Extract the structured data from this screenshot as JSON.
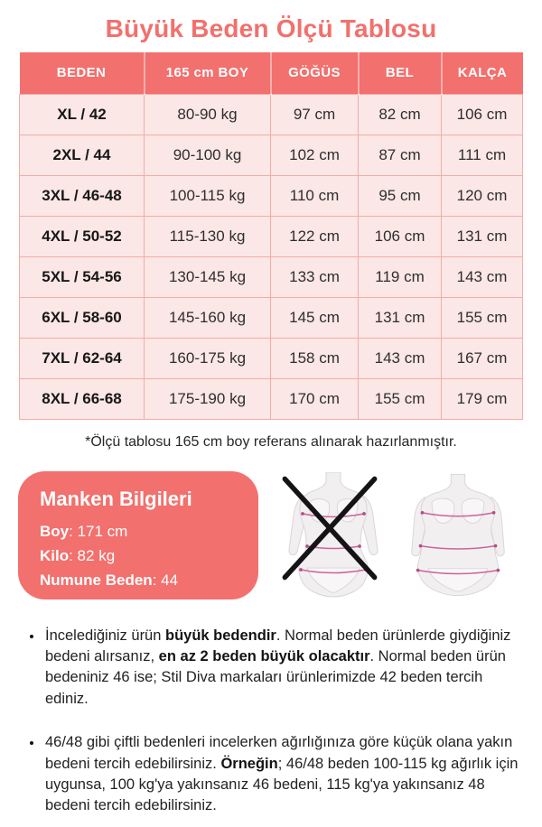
{
  "title": "Büyük Beden Ölçü Tablosu",
  "colors": {
    "coral": "#F2706D",
    "cell_bg": "#FBE7E5",
    "grid": "#F3ACA8",
    "measure_line": "#C9659B"
  },
  "table": {
    "headers": [
      "BEDEN",
      "165 cm BOY",
      "GÖĞÜS",
      "BEL",
      "KALÇA"
    ],
    "rows": [
      [
        "XL / 42",
        "80-90 kg",
        "97 cm",
        "82 cm",
        "106 cm"
      ],
      [
        "2XL / 44",
        "90-100 kg",
        "102 cm",
        "87 cm",
        "111 cm"
      ],
      [
        "3XL / 46-48",
        "100-115 kg",
        "110 cm",
        "95 cm",
        "120 cm"
      ],
      [
        "4XL / 50-52",
        "115-130 kg",
        "122 cm",
        "106 cm",
        "131 cm"
      ],
      [
        "5XL / 54-56",
        "130-145 kg",
        "133 cm",
        "119 cm",
        "143 cm"
      ],
      [
        "6XL / 58-60",
        "145-160 kg",
        "145 cm",
        "131 cm",
        "155 cm"
      ],
      [
        "7XL / 62-64",
        "160-175 kg",
        "158 cm",
        "143 cm",
        "167 cm"
      ],
      [
        "8XL / 66-68",
        "175-190 kg",
        "170 cm",
        "155 cm",
        "179 cm"
      ]
    ]
  },
  "footnote": "*Ölçü tablosu 165 cm boy referans alınarak hazırlanmıştır.",
  "model_info": {
    "heading": "Manken Bilgileri",
    "lines": [
      {
        "label": "Boy",
        "value": "171 cm"
      },
      {
        "label": "Kilo",
        "value": "82 kg"
      },
      {
        "label": "Numune Beden",
        "value": "44"
      }
    ]
  },
  "figures": {
    "crossed_figure": "crossed-out-normal-size-figure",
    "fit_figure": "plus-size-measurement-figure"
  },
  "notes": [
    [
      {
        "t": "İncelediğiniz ürün ",
        "b": false
      },
      {
        "t": "büyük bedendir",
        "b": true
      },
      {
        "t": ". Normal beden ürünlerde giydiğiniz bedeni alırsanız, ",
        "b": false
      },
      {
        "t": "en az 2 beden büyük olacaktır",
        "b": true
      },
      {
        "t": ". Normal beden ürün bedeniniz 46 ise; Stil Diva markaları ürünlerimizde 42 beden tercih ediniz.",
        "b": false
      }
    ],
    [
      {
        "t": "46/48 gibi çiftli bedenleri incelerken ağırlığınıza göre küçük olana yakın bedeni tercih edebilirsiniz. ",
        "b": false
      },
      {
        "t": "Örneğin",
        "b": true
      },
      {
        "t": "; 46/48 beden 100-115 kg ağırlık için uygunsa, 100 kg'ya yakınsanız 46 bedeni, 115 kg'ya yakınsanız 48 bedeni tercih edebilirsiniz.",
        "b": false
      }
    ]
  ]
}
